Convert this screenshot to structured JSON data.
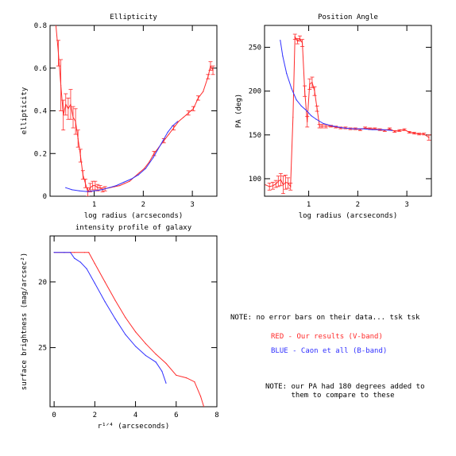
{
  "colors": {
    "red": "#ff2a2a",
    "blue": "#3030ff",
    "axis": "#000000"
  },
  "notes": {
    "error_bars": "NOTE: no error bars on their data... tsk tsk",
    "legend_red": "RED - Our results (V-band)",
    "legend_blue": "BLUE - Caon et all (B-band)",
    "pa_offset": "NOTE: our PA had 180 degrees added to\n      them to compare to these"
  },
  "chart_data": [
    {
      "id": "ellipticity",
      "type": "line",
      "title": "Ellipticity",
      "xlabel": "log radius (arcseconds)",
      "ylabel": "ellipticity",
      "xlim": [
        0.1,
        3.5
      ],
      "ylim": [
        0,
        0.8
      ],
      "xticks": [
        1,
        2,
        3
      ],
      "xtick_labels": [
        "1",
        "2",
        "3"
      ],
      "yticks": [
        0,
        0.2,
        0.4,
        0.6,
        0.8
      ],
      "ytick_labels": [
        "0",
        "0.2",
        "0.4",
        "0.6",
        "0.8"
      ],
      "grid": false,
      "series": [
        {
          "color_key": "red",
          "x": [
            0.22,
            0.27,
            0.32,
            0.37,
            0.42,
            0.47,
            0.52,
            0.57,
            0.62,
            0.67,
            0.72,
            0.77,
            0.82,
            0.87,
            0.92,
            0.97,
            1.02,
            1.07,
            1.12,
            1.17,
            1.22,
            1.32,
            1.42,
            1.52,
            1.62,
            1.72,
            1.82,
            1.92,
            2.02,
            2.12,
            2.22,
            2.32,
            2.42,
            2.52,
            2.62,
            2.72,
            2.82,
            2.92,
            3.02,
            3.12,
            3.22,
            3.32,
            3.37,
            3.42
          ],
          "y": [
            0.8,
            0.67,
            0.52,
            0.38,
            0.43,
            0.41,
            0.43,
            0.37,
            0.35,
            0.27,
            0.19,
            0.1,
            0.06,
            0.02,
            0.04,
            0.05,
            0.05,
            0.04,
            0.04,
            0.03,
            0.035,
            0.04,
            0.045,
            0.05,
            0.06,
            0.07,
            0.09,
            0.11,
            0.13,
            0.16,
            0.2,
            0.23,
            0.26,
            0.29,
            0.32,
            0.35,
            0.37,
            0.39,
            0.41,
            0.46,
            0.49,
            0.56,
            0.61,
            0.59
          ],
          "yerr": [
            0,
            0.06,
            0.12,
            0.07,
            0.05,
            0.05,
            0.07,
            0.05,
            0.06,
            0.04,
            0.03,
            0.02,
            0.02,
            0.02,
            0.02,
            0.02,
            0.02,
            0.015,
            0.01,
            0.01,
            0.01,
            0,
            0,
            0,
            0,
            0,
            0,
            0,
            0,
            0,
            0.01,
            0,
            0.01,
            0,
            0.01,
            0,
            0,
            0.01,
            0.01,
            0.01,
            0,
            0.01,
            0.02,
            0.02
          ]
        },
        {
          "color_key": "blue",
          "x": [
            0.42,
            0.55,
            0.7,
            0.85,
            1.0,
            1.15,
            1.3,
            1.45,
            1.6,
            1.75,
            1.9,
            2.05,
            2.2,
            2.35,
            2.5,
            2.6,
            2.7
          ],
          "y": [
            0.04,
            0.03,
            0.025,
            0.022,
            0.025,
            0.03,
            0.04,
            0.05,
            0.065,
            0.08,
            0.1,
            0.13,
            0.18,
            0.24,
            0.3,
            0.33,
            0.35
          ]
        }
      ]
    },
    {
      "id": "position-angle",
      "type": "line",
      "title": "Position Angle",
      "xlabel": "log radius (arcseconds)",
      "ylabel": "PA (deg)",
      "xlim": [
        0.1,
        3.5
      ],
      "ylim": [
        80,
        275
      ],
      "xticks": [
        1,
        2,
        3
      ],
      "xtick_labels": [
        "1",
        "2",
        "3"
      ],
      "yticks": [
        100,
        150,
        200,
        250
      ],
      "ytick_labels": [
        "100",
        "150",
        "200",
        "250"
      ],
      "grid": false,
      "series": [
        {
          "color_key": "red",
          "x": [
            0.12,
            0.2,
            0.27,
            0.33,
            0.38,
            0.43,
            0.48,
            0.53,
            0.58,
            0.63,
            0.68,
            0.72,
            0.77,
            0.82,
            0.87,
            0.92,
            0.97,
            1.02,
            1.07,
            1.12,
            1.17,
            1.22,
            1.27,
            1.35,
            1.45,
            1.55,
            1.65,
            1.75,
            1.85,
            1.95,
            2.05,
            2.15,
            2.25,
            2.35,
            2.45,
            2.55,
            2.65,
            2.75,
            2.85,
            2.95,
            3.05,
            3.15,
            3.25,
            3.35,
            3.45
          ],
          "y": [
            93,
            91,
            92,
            94,
            97,
            99,
            93,
            96,
            95,
            91,
            170,
            262,
            257,
            260,
            255,
            200,
            165,
            208,
            210,
            200,
            180,
            160,
            160,
            160,
            160,
            159,
            158,
            158,
            157,
            157,
            156,
            158,
            157,
            157,
            156,
            155,
            157,
            154,
            155,
            156,
            153,
            152,
            151,
            151,
            147
          ],
          "yerr": [
            0,
            4,
            4,
            4,
            6,
            7,
            10,
            8,
            6,
            4,
            0,
            3,
            3,
            3,
            4,
            6,
            6,
            6,
            6,
            5,
            3,
            2,
            2,
            2,
            1,
            1,
            1,
            1,
            1,
            1,
            1,
            1,
            1,
            1,
            1,
            1,
            1,
            1,
            1,
            1,
            1,
            1,
            1,
            1,
            3
          ]
        },
        {
          "color_key": "blue",
          "x": [
            0.42,
            0.47,
            0.55,
            0.65,
            0.75,
            0.85,
            0.95,
            1.05,
            1.15,
            1.3,
            1.5,
            1.7,
            1.9,
            2.1,
            2.3,
            2.5,
            2.7
          ],
          "y": [
            258,
            240,
            220,
            203,
            190,
            183,
            178,
            172,
            168,
            163,
            160,
            158,
            157,
            157,
            156,
            156,
            155
          ]
        }
      ]
    },
    {
      "id": "intensity-profile",
      "type": "line",
      "title": "intensity profile of galaxy",
      "xlabel": "r¹ᐟ⁴ (arcseconds)",
      "ylabel": "surface brightness (mag/arcsec²)",
      "xlim": [
        -0.2,
        8
      ],
      "ylim": [
        16.5,
        29.5
      ],
      "y_inverted": true,
      "xticks": [
        0,
        2,
        4,
        6,
        8
      ],
      "xtick_labels": [
        "0",
        "2",
        "4",
        "6",
        "8"
      ],
      "yticks": [
        20,
        25
      ],
      "ytick_labels": [
        "20",
        "25"
      ],
      "grid": false,
      "series": [
        {
          "color_key": "red",
          "x": [
            0,
            0.5,
            1.0,
            1.5,
            1.7,
            2.0,
            2.5,
            3.0,
            3.5,
            4.0,
            4.5,
            5.0,
            5.5,
            6.0,
            6.5,
            6.9,
            7.2,
            7.5
          ],
          "y": [
            17.75,
            17.75,
            17.75,
            17.75,
            17.75,
            18.6,
            20.0,
            21.4,
            22.7,
            23.8,
            24.7,
            25.5,
            26.2,
            27.1,
            27.3,
            27.6,
            28.7,
            30.2
          ]
        },
        {
          "color_key": "blue",
          "x": [
            0,
            0.5,
            0.8,
            1.0,
            1.3,
            1.6,
            2.0,
            2.5,
            3.0,
            3.5,
            4.0,
            4.5,
            5.0,
            5.3,
            5.5
          ],
          "y": [
            17.75,
            17.75,
            17.75,
            18.2,
            18.5,
            19.0,
            20.1,
            21.5,
            22.8,
            24.0,
            24.9,
            25.6,
            26.1,
            26.8,
            27.7
          ]
        }
      ]
    }
  ]
}
